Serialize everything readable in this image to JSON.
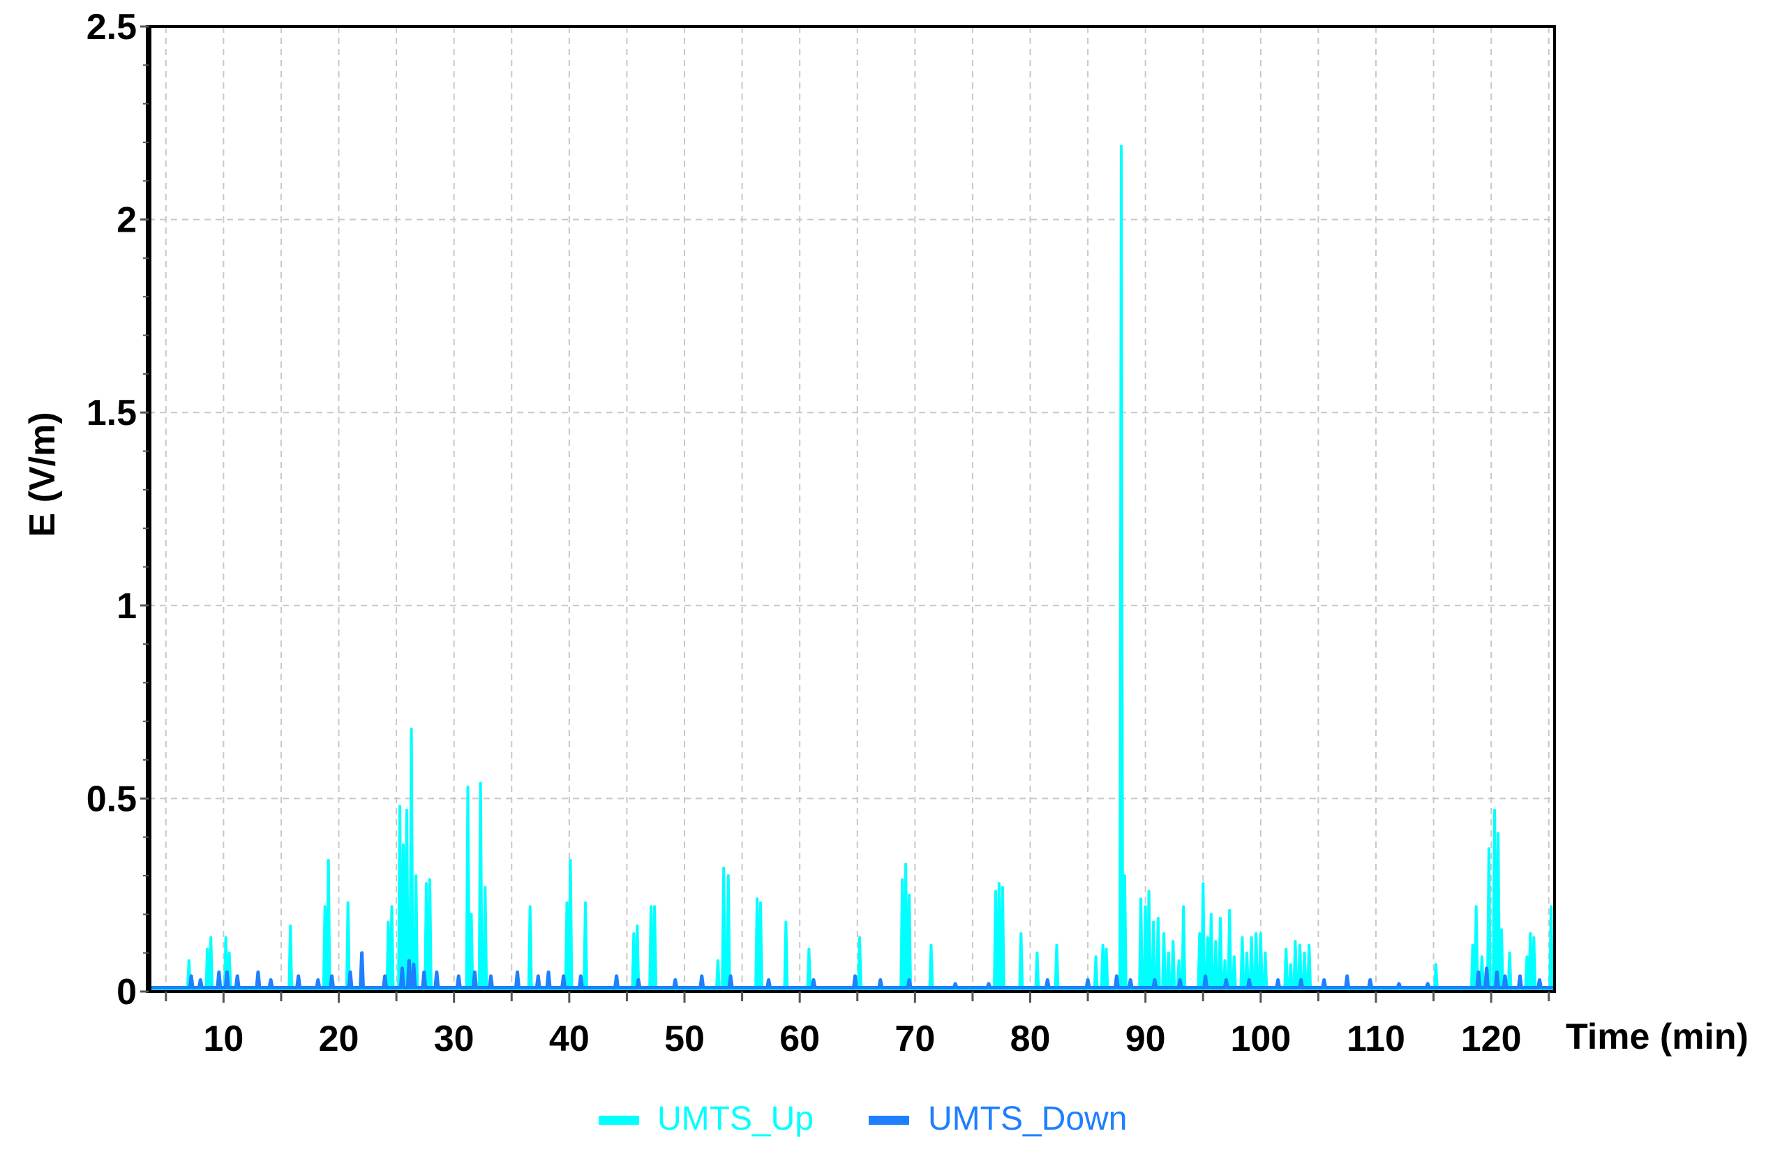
{
  "chart_data": {
    "type": "line",
    "title": "",
    "xlabel": "Time (min)",
    "ylabel": "E (V/m)",
    "xlim": [
      3.5,
      125.5
    ],
    "ylim": [
      0,
      2.5
    ],
    "xticks": [
      {
        "value": 10,
        "label": "10"
      },
      {
        "value": 20,
        "label": "20"
      },
      {
        "value": 30,
        "label": "30"
      },
      {
        "value": 40,
        "label": "40"
      },
      {
        "value": 50,
        "label": "50"
      },
      {
        "value": 60,
        "label": "60"
      },
      {
        "value": 70,
        "label": "70"
      },
      {
        "value": 80,
        "label": "80"
      },
      {
        "value": 90,
        "label": "90"
      },
      {
        "value": 100,
        "label": "100"
      },
      {
        "value": 110,
        "label": "110"
      },
      {
        "value": 120,
        "label": "120"
      }
    ],
    "yticks": [
      {
        "value": 0,
        "label": "0"
      },
      {
        "value": 0.5,
        "label": "0.5"
      },
      {
        "value": 1,
        "label": "1"
      },
      {
        "value": 1.5,
        "label": "1.5"
      },
      {
        "value": 2,
        "label": "2"
      },
      {
        "value": 2.5,
        "label": "2.5"
      }
    ],
    "grid": true,
    "legend_position": "bottom",
    "series": [
      {
        "name": "UMTS_Up",
        "color": "#00FFFF",
        "baseline": 0.005,
        "points": [
          [
            7.0,
            0.08
          ],
          [
            8.6,
            0.11
          ],
          [
            8.9,
            0.14
          ],
          [
            10.2,
            0.14
          ],
          [
            10.5,
            0.1
          ],
          [
            15.8,
            0.17
          ],
          [
            18.8,
            0.22
          ],
          [
            19.1,
            0.34
          ],
          [
            20.8,
            0.23
          ],
          [
            24.3,
            0.18
          ],
          [
            24.6,
            0.22
          ],
          [
            25.3,
            0.48
          ],
          [
            25.6,
            0.38
          ],
          [
            25.9,
            0.47
          ],
          [
            26.3,
            0.68
          ],
          [
            26.7,
            0.3
          ],
          [
            27.6,
            0.28
          ],
          [
            27.9,
            0.29
          ],
          [
            31.2,
            0.53
          ],
          [
            31.5,
            0.2
          ],
          [
            32.3,
            0.54
          ],
          [
            32.7,
            0.27
          ],
          [
            36.6,
            0.22
          ],
          [
            39.8,
            0.23
          ],
          [
            40.1,
            0.34
          ],
          [
            41.4,
            0.23
          ],
          [
            45.6,
            0.15
          ],
          [
            45.9,
            0.17
          ],
          [
            47.1,
            0.22
          ],
          [
            47.4,
            0.22
          ],
          [
            52.9,
            0.08
          ],
          [
            53.4,
            0.32
          ],
          [
            53.8,
            0.3
          ],
          [
            56.3,
            0.24
          ],
          [
            56.6,
            0.23
          ],
          [
            58.8,
            0.18
          ],
          [
            60.8,
            0.11
          ],
          [
            65.2,
            0.14
          ],
          [
            68.9,
            0.29
          ],
          [
            69.2,
            0.33
          ],
          [
            69.5,
            0.25
          ],
          [
            71.4,
            0.12
          ],
          [
            77.0,
            0.26
          ],
          [
            77.3,
            0.28
          ],
          [
            77.6,
            0.27
          ],
          [
            79.2,
            0.15
          ],
          [
            80.6,
            0.1
          ],
          [
            82.3,
            0.12
          ],
          [
            85.7,
            0.09
          ],
          [
            86.3,
            0.12
          ],
          [
            86.6,
            0.11
          ],
          [
            87.9,
            2.19
          ],
          [
            88.2,
            0.3
          ],
          [
            89.6,
            0.24
          ],
          [
            90.0,
            0.22
          ],
          [
            90.3,
            0.26
          ],
          [
            90.7,
            0.18
          ],
          [
            91.1,
            0.19
          ],
          [
            91.6,
            0.15
          ],
          [
            92.0,
            0.1
          ],
          [
            92.4,
            0.13
          ],
          [
            92.9,
            0.08
          ],
          [
            93.3,
            0.22
          ],
          [
            94.7,
            0.15
          ],
          [
            95.0,
            0.28
          ],
          [
            95.4,
            0.14
          ],
          [
            95.7,
            0.2
          ],
          [
            96.1,
            0.13
          ],
          [
            96.5,
            0.19
          ],
          [
            96.9,
            0.08
          ],
          [
            97.3,
            0.21
          ],
          [
            97.7,
            0.09
          ],
          [
            98.4,
            0.14
          ],
          [
            98.8,
            0.1
          ],
          [
            99.2,
            0.14
          ],
          [
            99.6,
            0.15
          ],
          [
            100.0,
            0.15
          ],
          [
            100.4,
            0.1
          ],
          [
            102.2,
            0.11
          ],
          [
            102.6,
            0.07
          ],
          [
            103.0,
            0.13
          ],
          [
            103.4,
            0.12
          ],
          [
            103.8,
            0.1
          ],
          [
            104.2,
            0.12
          ],
          [
            115.2,
            0.07
          ],
          [
            118.4,
            0.12
          ],
          [
            118.7,
            0.22
          ],
          [
            119.2,
            0.09
          ],
          [
            119.8,
            0.37
          ],
          [
            120.3,
            0.47
          ],
          [
            120.6,
            0.41
          ],
          [
            120.9,
            0.16
          ],
          [
            121.6,
            0.1
          ],
          [
            123.1,
            0.09
          ],
          [
            123.4,
            0.15
          ],
          [
            123.7,
            0.14
          ],
          [
            125.2,
            0.22
          ]
        ]
      },
      {
        "name": "UMTS_Down",
        "color": "#1E7FFF",
        "baseline": 0.01,
        "points": [
          [
            7.2,
            0.04
          ],
          [
            8.0,
            0.03
          ],
          [
            9.6,
            0.05
          ],
          [
            10.3,
            0.05
          ],
          [
            11.2,
            0.04
          ],
          [
            13.0,
            0.05
          ],
          [
            14.1,
            0.03
          ],
          [
            16.5,
            0.04
          ],
          [
            18.2,
            0.03
          ],
          [
            19.4,
            0.04
          ],
          [
            21.0,
            0.05
          ],
          [
            22.0,
            0.1
          ],
          [
            24.0,
            0.04
          ],
          [
            25.5,
            0.06
          ],
          [
            26.1,
            0.08
          ],
          [
            26.5,
            0.07
          ],
          [
            27.4,
            0.05
          ],
          [
            28.5,
            0.05
          ],
          [
            30.4,
            0.04
          ],
          [
            31.8,
            0.05
          ],
          [
            33.2,
            0.04
          ],
          [
            35.5,
            0.05
          ],
          [
            37.3,
            0.04
          ],
          [
            38.2,
            0.05
          ],
          [
            39.5,
            0.04
          ],
          [
            41.0,
            0.04
          ],
          [
            44.1,
            0.04
          ],
          [
            46.0,
            0.03
          ],
          [
            49.2,
            0.03
          ],
          [
            51.5,
            0.04
          ],
          [
            54.0,
            0.04
          ],
          [
            57.3,
            0.03
          ],
          [
            61.2,
            0.03
          ],
          [
            64.8,
            0.04
          ],
          [
            67.0,
            0.03
          ],
          [
            69.5,
            0.03
          ],
          [
            73.5,
            0.02
          ],
          [
            76.4,
            0.02
          ],
          [
            81.5,
            0.03
          ],
          [
            85.0,
            0.03
          ],
          [
            87.5,
            0.04
          ],
          [
            88.7,
            0.03
          ],
          [
            90.8,
            0.03
          ],
          [
            93.0,
            0.03
          ],
          [
            95.2,
            0.04
          ],
          [
            97.0,
            0.03
          ],
          [
            99.0,
            0.03
          ],
          [
            101.5,
            0.03
          ],
          [
            103.5,
            0.03
          ],
          [
            105.5,
            0.03
          ],
          [
            107.5,
            0.04
          ],
          [
            109.5,
            0.03
          ],
          [
            112.0,
            0.02
          ],
          [
            114.5,
            0.02
          ],
          [
            118.9,
            0.05
          ],
          [
            119.6,
            0.06
          ],
          [
            120.5,
            0.05
          ],
          [
            121.2,
            0.04
          ],
          [
            122.5,
            0.04
          ],
          [
            124.2,
            0.03
          ]
        ]
      }
    ]
  }
}
